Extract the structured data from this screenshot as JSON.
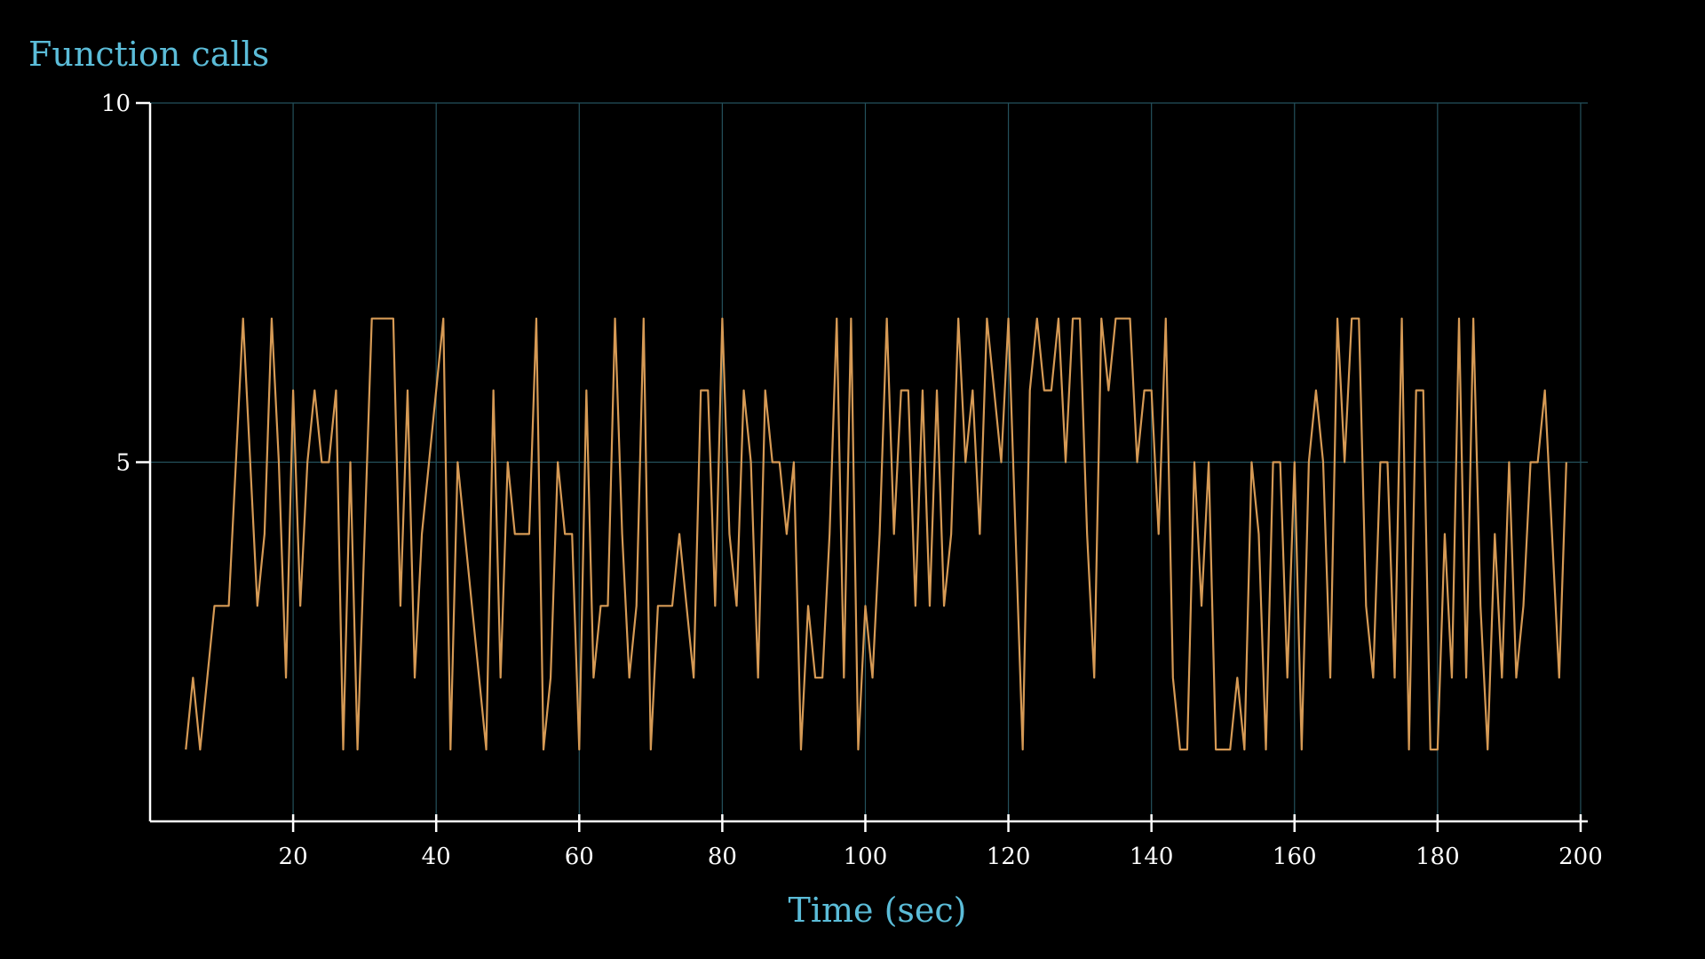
{
  "chart_data": {
    "type": "line",
    "title": "Function calls",
    "x_label": "Time (sec)",
    "x": [
      5,
      6,
      7,
      8,
      9,
      10,
      11,
      12,
      13,
      14,
      15,
      16,
      17,
      18,
      19,
      20,
      21,
      22,
      23,
      24,
      25,
      26,
      27,
      28,
      29,
      30,
      31,
      32,
      33,
      34,
      35,
      36,
      37,
      38,
      39,
      40,
      41,
      42,
      43,
      44,
      45,
      46,
      47,
      48,
      49,
      50,
      51,
      52,
      53,
      54,
      55,
      56,
      57,
      58,
      59,
      60,
      61,
      62,
      63,
      64,
      65,
      66,
      67,
      68,
      69,
      70,
      71,
      72,
      73,
      74,
      75,
      76,
      77,
      78,
      79,
      80,
      81,
      82,
      83,
      84,
      85,
      86,
      87,
      88,
      89,
      90,
      91,
      92,
      93,
      94,
      95,
      96,
      97,
      98,
      99,
      100,
      101,
      102,
      103,
      104,
      105,
      106,
      107,
      108,
      109,
      110,
      111,
      112,
      113,
      114,
      115,
      116,
      117,
      118,
      119,
      120,
      121,
      122,
      123,
      124,
      125,
      126,
      127,
      128,
      129,
      130,
      131,
      132,
      133,
      134,
      135,
      136,
      137,
      138,
      139,
      140,
      141,
      142,
      143,
      144,
      145,
      146,
      147,
      148,
      149,
      150,
      151,
      152,
      153,
      154,
      155,
      156,
      157,
      158,
      159,
      160,
      161,
      162,
      163,
      164,
      165,
      166,
      167,
      168,
      169,
      170,
      171,
      172,
      173,
      174,
      175,
      176,
      177,
      178,
      179,
      180,
      181,
      182,
      183,
      184,
      185,
      186,
      187,
      188,
      189,
      190,
      191,
      192,
      193,
      194,
      195,
      196,
      197,
      198
    ],
    "series": [
      {
        "color": "#d69a55",
        "values": [
          1,
          2,
          1,
          2,
          3,
          3,
          3,
          5,
          7,
          5,
          3,
          4,
          7,
          5,
          2,
          6,
          3,
          5,
          6,
          5,
          5,
          6,
          1,
          5,
          1,
          4,
          7,
          7,
          7,
          7,
          3,
          6,
          2,
          4,
          5,
          6,
          7,
          1,
          5,
          4,
          3,
          2,
          1,
          6,
          2,
          5,
          4,
          4,
          4,
          7,
          1,
          2,
          5,
          4,
          4,
          1,
          6,
          2,
          3,
          3,
          7,
          4,
          2,
          3,
          7,
          1,
          3,
          3,
          3,
          4,
          3,
          2,
          6,
          6,
          3,
          7,
          4,
          3,
          6,
          5,
          2,
          6,
          5,
          5,
          4,
          5,
          1,
          3,
          2,
          2,
          4,
          7,
          2,
          7,
          1,
          3,
          2,
          4,
          7,
          4,
          6,
          6,
          3,
          6,
          3,
          6,
          3,
          4,
          7,
          5,
          6,
          4,
          7,
          6,
          5,
          7,
          4,
          1,
          6,
          7,
          6,
          6,
          7,
          5,
          7,
          7,
          4,
          2,
          7,
          6,
          7,
          7,
          7,
          5,
          6,
          6,
          4,
          7,
          2,
          1,
          1,
          5,
          3,
          5,
          1,
          1,
          1,
          2,
          1,
          5,
          4,
          1,
          5,
          5,
          2,
          5,
          1,
          5,
          6,
          5,
          2,
          7,
          5,
          7,
          7,
          3,
          2,
          5,
          5,
          2,
          7,
          1,
          6,
          6,
          1,
          1,
          4,
          2,
          7,
          2,
          7,
          3,
          1,
          4,
          2,
          5,
          2,
          3,
          5,
          5,
          6,
          4,
          2,
          5
        ]
      }
    ],
    "xlim": [
      0,
      201
    ],
    "ylim": [
      0,
      10
    ],
    "xticks": [
      20,
      40,
      60,
      80,
      100,
      120,
      140,
      160,
      180,
      200
    ],
    "yticks": [
      5,
      10
    ],
    "grid": true
  }
}
